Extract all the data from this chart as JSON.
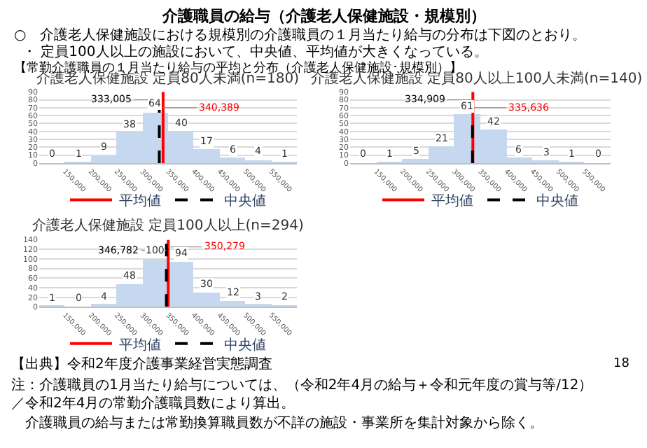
{
  "chart_data": [
    {
      "type": "other",
      "title": "介護職員の給与（介護老人保健施設・規模別）",
      "annotations": [
        "○　介護老人保健施設における規模別の介護職員の１月当たり給与の分布は下図のとおり。",
        "・ 定員100人以上の施設において、中央値、平均値が大きくなっている。",
        "【常勤介護職員の１月当たり給与の平均と分布（介護老人保健施設･規模別）】",
        "【出典】令和2年度介護事業経営実態調査",
        "注：介護職員の1月当たり給与については、（令和2年4月の給与＋令和元年度の賞与等/12）／令和2年4月の常勤介護職員数により算出。",
        "介護職員の給与または常勤換算職員数が不詳の施設・事業所を集計対象から除く。",
        "18"
      ]
    },
    {
      "type": "histogram",
      "title": "介護老人保健施設 定員80人未満(n=180)",
      "bins": [
        100000,
        150000,
        200000,
        250000,
        300000,
        350000,
        400000,
        450000,
        500000,
        550000,
        600000
      ],
      "values": [
        0,
        1,
        9,
        38,
        64,
        40,
        17,
        6,
        4,
        1
      ],
      "color": "#c6d7f0",
      "data_labels": true,
      "xlim": [
        100000,
        600000
      ],
      "xticks": [
        {
          "value": 150000,
          "label": "150,000"
        },
        {
          "value": 200000,
          "label": "200,000"
        },
        {
          "value": 250000,
          "label": "250,000"
        },
        {
          "value": 300000,
          "label": "300,000"
        },
        {
          "value": 350000,
          "label": "350,000"
        },
        {
          "value": 400000,
          "label": "400,000"
        },
        {
          "value": 450000,
          "label": "450,000"
        },
        {
          "value": 500000,
          "label": "500,000"
        },
        {
          "value": 550000,
          "label": "550,000"
        }
      ],
      "ylim": [
        0,
        90
      ],
      "yticks": [
        0,
        10,
        20,
        30,
        40,
        50,
        60,
        70,
        80,
        90
      ],
      "grid": "y",
      "legend": "bottom",
      "ref_lines": [
        {
          "axis": "x",
          "value": 340389,
          "label": "平均値",
          "color": "#ff0000",
          "line_style": "solid"
        },
        {
          "axis": "x",
          "value": 333005,
          "label": "中央値",
          "color": "#000000",
          "line_style": "dashed"
        }
      ],
      "annotations": [
        {
          "text": "333,005",
          "x": 333005,
          "y": 80
        },
        {
          "text": "340,389",
          "x": 340389,
          "y": 70
        }
      ]
    },
    {
      "type": "histogram",
      "title": "介護老人保健施設 定員80人以上100人未満(n=140)",
      "bins": [
        100000,
        150000,
        200000,
        250000,
        300000,
        350000,
        400000,
        450000,
        500000,
        550000,
        600000
      ],
      "values": [
        0,
        1,
        5,
        21,
        61,
        42,
        6,
        3,
        1,
        0
      ],
      "color": "#c6d7f0",
      "data_labels": true,
      "xlim": [
        100000,
        600000
      ],
      "xticks": [
        {
          "value": 150000,
          "label": "150,000"
        },
        {
          "value": 200000,
          "label": "200,000"
        },
        {
          "value": 250000,
          "label": "250,000"
        },
        {
          "value": 300000,
          "label": "300,000"
        },
        {
          "value": 350000,
          "label": "350,000"
        },
        {
          "value": 400000,
          "label": "400,000"
        },
        {
          "value": 450000,
          "label": "450,000"
        },
        {
          "value": 500000,
          "label": "500,000"
        },
        {
          "value": 550000,
          "label": "550,000"
        }
      ],
      "ylim": [
        0,
        90
      ],
      "yticks": [
        0,
        10,
        20,
        30,
        40,
        50,
        60,
        70,
        80,
        90
      ],
      "grid": "y",
      "legend": "bottom",
      "ref_lines": [
        {
          "axis": "x",
          "value": 335636,
          "label": "平均値",
          "color": "#ff0000",
          "line_style": "solid"
        },
        {
          "axis": "x",
          "value": 334909,
          "label": "中央値",
          "color": "#000000",
          "line_style": "dashed"
        }
      ],
      "annotations": [
        {
          "text": "334,909",
          "x": 334909,
          "y": 80
        },
        {
          "text": "335,636",
          "x": 335636,
          "y": 70
        }
      ]
    },
    {
      "type": "histogram",
      "title": "介護老人保健施設 定員100人以上(n=294)",
      "bins": [
        100000,
        150000,
        200000,
        250000,
        300000,
        350000,
        400000,
        450000,
        500000,
        550000,
        600000
      ],
      "values": [
        1,
        0,
        4,
        48,
        100,
        94,
        30,
        12,
        3,
        2
      ],
      "color": "#c6d7f0",
      "data_labels": true,
      "xlim": [
        100000,
        600000
      ],
      "xticks": [
        {
          "value": 150000,
          "label": "150,000"
        },
        {
          "value": 200000,
          "label": "200,000"
        },
        {
          "value": 250000,
          "label": "250,000"
        },
        {
          "value": 300000,
          "label": "300,000"
        },
        {
          "value": 350000,
          "label": "350,000"
        },
        {
          "value": 400000,
          "label": "400,000"
        },
        {
          "value": 450000,
          "label": "450,000"
        },
        {
          "value": 500000,
          "label": "500,000"
        },
        {
          "value": 550000,
          "label": "550,000"
        }
      ],
      "ylim": [
        0,
        140
      ],
      "yticks": [
        0,
        20,
        40,
        60,
        80,
        100,
        120,
        140
      ],
      "grid": "y",
      "legend": "bottom",
      "ref_lines": [
        {
          "axis": "x",
          "value": 350279,
          "label": "平均値",
          "color": "#ff0000",
          "line_style": "solid"
        },
        {
          "axis": "x",
          "value": 346782,
          "label": "中央値",
          "color": "#000000",
          "line_style": "dashed"
        }
      ],
      "annotations": [
        {
          "text": "346,782",
          "x": 346782,
          "y": 118
        },
        {
          "text": "350,279",
          "x": 350279,
          "y": 125
        }
      ]
    }
  ]
}
